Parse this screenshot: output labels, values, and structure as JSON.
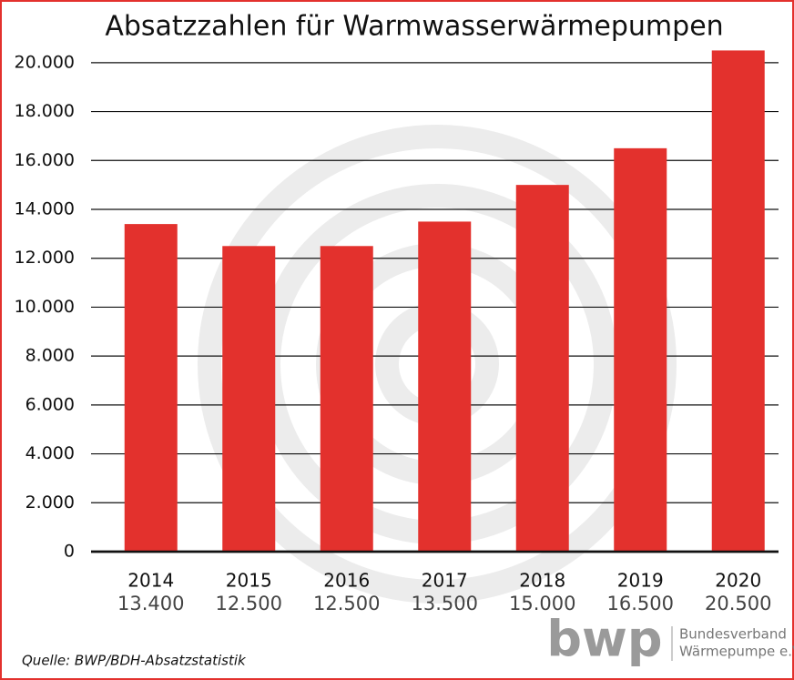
{
  "chart_data": {
    "type": "bar",
    "title": "Absatzzahlen für Warmwasserwärmepumpen",
    "categories": [
      "2014",
      "2015",
      "2016",
      "2017",
      "2018",
      "2019",
      "2020"
    ],
    "values": [
      13400,
      12500,
      12500,
      13500,
      15000,
      16500,
      20500
    ],
    "value_labels": [
      "13.400",
      "12.500",
      "12.500",
      "13.500",
      "15.000",
      "16.500",
      "20.500"
    ],
    "color": "#e3312d",
    "ylim": [
      0,
      21000
    ],
    "yticks": [
      0,
      {
        "value": 2000,
        "label": "2.000"
      },
      {
        "value": 4000,
        "label": "4.000"
      },
      {
        "value": 6000,
        "label": "6.000"
      },
      {
        "value": 8000,
        "label": "8.000"
      },
      {
        "value": 10000,
        "label": "10.000"
      },
      {
        "value": 12000,
        "label": "12.000"
      },
      {
        "value": 14000,
        "label": "14.000"
      },
      {
        "value": 16000,
        "label": "16.000"
      },
      {
        "value": 18000,
        "label": "18.000"
      },
      {
        "value": 20000,
        "label": "20.000"
      }
    ],
    "grid": true,
    "source": "Quelle: BWP/BDH-Absatzstatistik",
    "logo": {
      "mark": "bwp",
      "line1": "Bundesverband",
      "line2": "Wärmepumpe e.V."
    }
  }
}
